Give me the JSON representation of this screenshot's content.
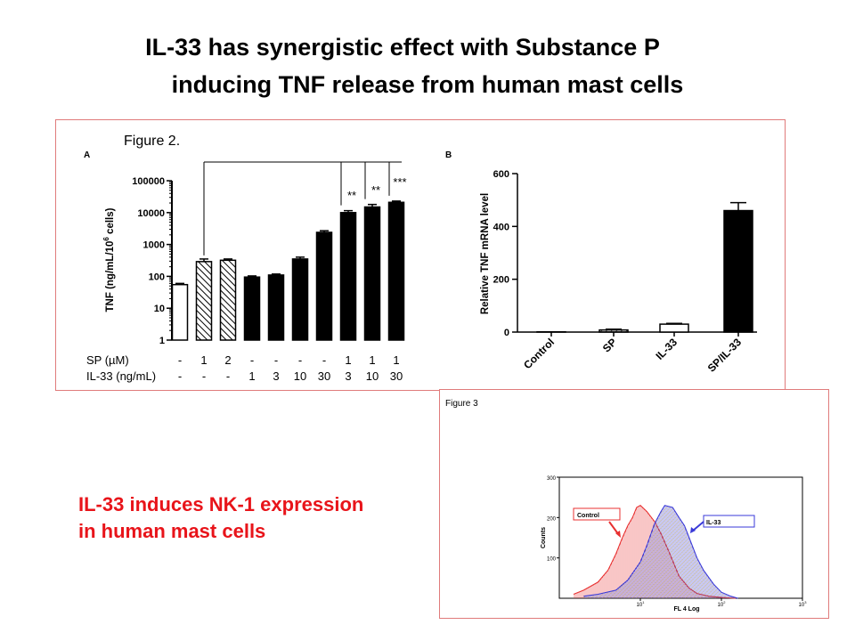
{
  "slide": {
    "title_line1": "IL-33 has synergistic effect with Substance P",
    "title_line2": "inducing TNF release from human mast cells",
    "caption_line1": "IL-33 induces NK-1 expression",
    "caption_line2": "in human mast cells",
    "border_color": "#e07b7b",
    "caption_color": "#e8141a"
  },
  "chart_data": [
    {
      "type": "bar",
      "figure_label": "Figure 2.",
      "panel_label": "A",
      "ylabel": "TNF (ng/mL/10",
      "ylabel_sup": "6",
      "ylabel_tail": " cells)",
      "yscale": "log",
      "ylim": [
        1,
        100000
      ],
      "yticks": [
        "1",
        "10",
        "100",
        "1000",
        "10000",
        "100000"
      ],
      "row_labels": [
        "SP (µM)",
        "IL-33 (ng/mL)"
      ],
      "conditions": [
        {
          "sp": "-",
          "il33": "-",
          "value": 55,
          "err": 5,
          "pattern": "open"
        },
        {
          "sp": "1",
          "il33": "-",
          "value": 290,
          "err": 60,
          "pattern": "hatched"
        },
        {
          "sp": "2",
          "il33": "-",
          "value": 320,
          "err": 30,
          "pattern": "hatched"
        },
        {
          "sp": "-",
          "il33": "1",
          "value": 95,
          "err": 8,
          "pattern": "solid"
        },
        {
          "sp": "-",
          "il33": "3",
          "value": 110,
          "err": 8,
          "pattern": "solid"
        },
        {
          "sp": "-",
          "il33": "10",
          "value": 350,
          "err": 50,
          "pattern": "solid"
        },
        {
          "sp": "-",
          "il33": "30",
          "value": 2400,
          "err": 300,
          "pattern": "solid"
        },
        {
          "sp": "1",
          "il33": "3",
          "value": 10000,
          "err": 1500,
          "pattern": "solid"
        },
        {
          "sp": "1",
          "il33": "10",
          "value": 15000,
          "err": 3000,
          "pattern": "solid"
        },
        {
          "sp": "1",
          "il33": "30",
          "value": 21000,
          "err": 2000,
          "pattern": "solid"
        }
      ],
      "significance": [
        "**",
        "**",
        "***"
      ]
    },
    {
      "type": "bar",
      "panel_label": "B",
      "ylabel": "Relative TNF mRNA level",
      "ylim": [
        0,
        600
      ],
      "yticks": [
        "0",
        "200",
        "400",
        "600"
      ],
      "categories": [
        "Control",
        "SP",
        "IL-33",
        "SP/IL-33"
      ],
      "values": [
        1,
        8,
        30,
        460
      ],
      "errors": [
        0,
        3,
        3,
        30
      ],
      "patterns": [
        "open",
        "hatched",
        "open",
        "solid"
      ]
    },
    {
      "type": "area",
      "figure_label": "Figure 3",
      "xlabel": "FL 4 Log",
      "ylabel": "Counts",
      "xscale": "log",
      "xlim": [
        1,
        1000
      ],
      "ylim": [
        0,
        300
      ],
      "yticks": [
        "100",
        "200",
        "300"
      ],
      "xticks": [
        "10",
        "10",
        "10"
      ],
      "xtick_sups": [
        "1",
        "2",
        "3"
      ],
      "series": [
        {
          "name": "Control",
          "color": "#e83030",
          "x": [
            1.5,
            2,
            3,
            4,
            5,
            6,
            7,
            8,
            9,
            10,
            12,
            15,
            18,
            22,
            26,
            30,
            40,
            50,
            70,
            100,
            150
          ],
          "y": [
            10,
            20,
            40,
            70,
            110,
            150,
            180,
            200,
            225,
            230,
            215,
            190,
            160,
            120,
            85,
            55,
            25,
            12,
            5,
            2,
            0
          ]
        },
        {
          "name": "IL-33",
          "color": "#3a3ad8",
          "x": [
            2,
            3,
            5,
            7,
            10,
            12,
            15,
            18,
            20,
            25,
            30,
            35,
            40,
            50,
            60,
            80,
            100,
            130,
            160
          ],
          "y": [
            5,
            10,
            20,
            45,
            90,
            130,
            185,
            215,
            230,
            225,
            200,
            180,
            150,
            100,
            70,
            35,
            15,
            5,
            0
          ]
        }
      ]
    }
  ]
}
